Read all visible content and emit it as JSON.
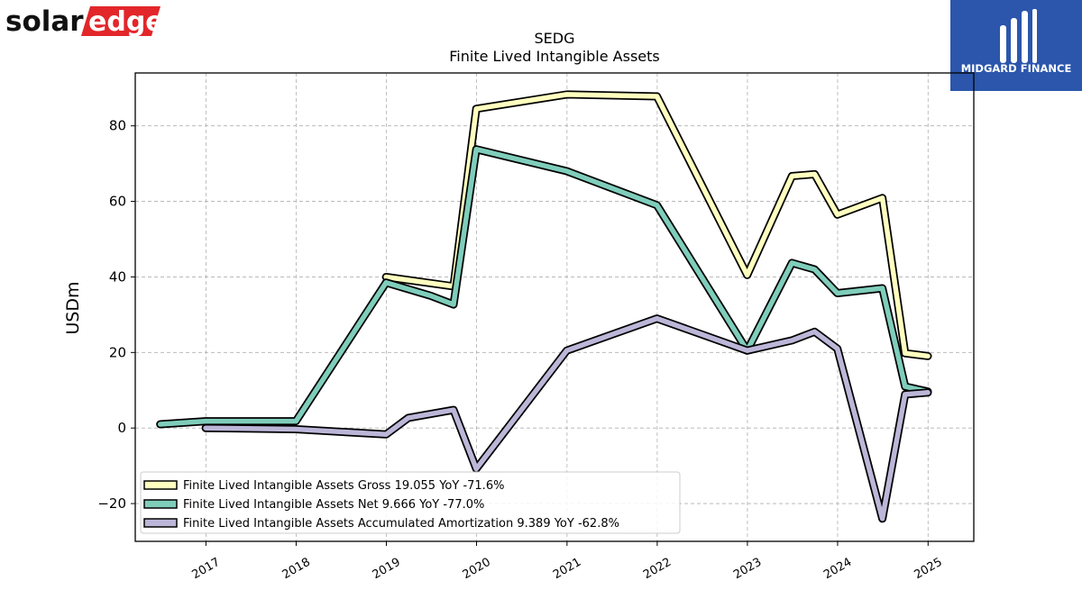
{
  "branding": {
    "company_logo_text_left": "solar",
    "company_logo_text_right": "edge",
    "publisher_logo_text": "MIDGARD FINANCE"
  },
  "colors": {
    "gross": "#ffffbf",
    "net": "#7fcdbb",
    "amortization": "#bcb6d8",
    "solaredge_red": "#e2262a",
    "midgard_blue": "#2b56ab"
  },
  "chart_data": {
    "type": "line",
    "title": "SEDG",
    "subtitle": "Finite Lived Intangible Assets",
    "xlabel": "",
    "ylabel": "USDm",
    "ylim": [
      -30,
      94
    ],
    "yticks": [
      -20,
      0,
      20,
      40,
      60,
      80
    ],
    "xlim": [
      "2016-03-21",
      "2025-07-05"
    ],
    "xticks": [
      "2017",
      "2018",
      "2019",
      "2020",
      "2021",
      "2022",
      "2023",
      "2024",
      "2025"
    ],
    "grid": true,
    "legend_position": "lower-left",
    "series": [
      {
        "name": "Finite Lived Intangible Assets Gross",
        "legend_label": "Finite Lived Intangible Assets Gross  19.055 YoY -71.6%",
        "color": "#ffffbf",
        "points": [
          [
            "2018-12-31",
            40.0
          ],
          [
            "2019-09-30",
            37.5
          ],
          [
            "2019-12-31",
            84.5
          ],
          [
            "2020-12-31",
            88.3
          ],
          [
            "2021-12-31",
            87.8
          ],
          [
            "2022-12-31",
            40.5
          ],
          [
            "2023-06-30",
            66.7
          ],
          [
            "2023-09-30",
            67.2
          ],
          [
            "2023-12-31",
            56.5
          ],
          [
            "2024-06-30",
            60.9
          ],
          [
            "2024-09-30",
            19.8
          ],
          [
            "2024-12-31",
            19.055
          ]
        ]
      },
      {
        "name": "Finite Lived Intangible Assets Net",
        "legend_label": "Finite Lived Intangible Assets Net  9.666 YoY -77.0%",
        "color": "#7fcdbb",
        "points": [
          [
            "2016-06-30",
            1.0
          ],
          [
            "2016-12-31",
            1.8
          ],
          [
            "2017-12-31",
            1.8
          ],
          [
            "2018-12-31",
            38.5
          ],
          [
            "2019-06-30",
            35.0
          ],
          [
            "2019-09-30",
            32.7
          ],
          [
            "2019-12-31",
            73.8
          ],
          [
            "2020-12-31",
            68.0
          ],
          [
            "2021-12-31",
            59.0
          ],
          [
            "2022-12-31",
            20.5
          ],
          [
            "2023-06-30",
            43.7
          ],
          [
            "2023-09-30",
            42.0
          ],
          [
            "2023-12-31",
            35.7
          ],
          [
            "2024-06-30",
            37.0
          ],
          [
            "2024-09-30",
            11.0
          ],
          [
            "2024-12-31",
            9.666
          ]
        ]
      },
      {
        "name": "Finite Lived Intangible Assets Accumulated Amortization",
        "legend_label": "Finite Lived Intangible Assets Accumulated Amortization  9.389 YoY -62.8%",
        "color": "#bcb6d8",
        "points": [
          [
            "2016-12-31",
            0.0
          ],
          [
            "2017-12-31",
            -0.3
          ],
          [
            "2018-12-31",
            -1.7
          ],
          [
            "2019-03-31",
            2.7
          ],
          [
            "2019-09-30",
            4.8
          ],
          [
            "2019-12-31",
            -10.8
          ],
          [
            "2020-12-31",
            20.5
          ],
          [
            "2021-12-31",
            29.0
          ],
          [
            "2022-12-31",
            20.5
          ],
          [
            "2023-06-30",
            23.2
          ],
          [
            "2023-09-30",
            25.5
          ],
          [
            "2023-12-31",
            21.0
          ],
          [
            "2024-06-30",
            -24.0
          ],
          [
            "2024-09-30",
            8.9
          ],
          [
            "2024-12-31",
            9.389
          ]
        ]
      }
    ]
  }
}
